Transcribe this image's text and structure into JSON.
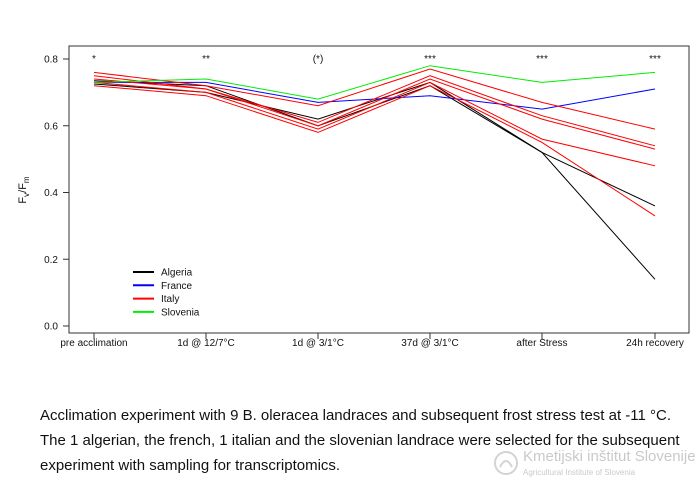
{
  "chart_data": {
    "type": "line",
    "ylabel_main": "F",
    "ylabel_sub1": "v",
    "ylabel_mid": "/F",
    "ylabel_sub2": "m",
    "categories": [
      "pre acclimation",
      "1d @ 12/7°C",
      "1d @ 3/1°C",
      "37d @ 3/1°C",
      "after Stress",
      "24h recovery"
    ],
    "significance": [
      "*",
      "**",
      "(*)",
      "***",
      "***",
      "***"
    ],
    "ylim": [
      0.0,
      0.8
    ],
    "yticks": [
      "0.0",
      "0.2",
      "0.4",
      "0.6",
      "0.8"
    ],
    "legend_placement": "bottom-left",
    "legend": [
      {
        "name": "Algeria",
        "color": "#000000"
      },
      {
        "name": "France",
        "color": "#0000ff"
      },
      {
        "name": "Italy",
        "color": "#ff0000"
      },
      {
        "name": "Slovenia",
        "color": "#00ee00"
      }
    ],
    "lines": [
      {
        "group": "Algeria",
        "color": "#000000",
        "values": [
          0.725,
          0.7,
          0.62,
          0.73,
          0.52,
          0.36
        ]
      },
      {
        "group": "Algeria",
        "color": "#000000",
        "values": [
          0.735,
          0.72,
          0.6,
          0.72,
          0.52,
          0.14
        ]
      },
      {
        "group": "France",
        "color": "#0000ff",
        "values": [
          0.73,
          0.73,
          0.67,
          0.69,
          0.65,
          0.71
        ]
      },
      {
        "group": "Italy",
        "color": "#ff0000",
        "values": [
          0.76,
          0.72,
          0.66,
          0.77,
          0.67,
          0.59
        ]
      },
      {
        "group": "Italy",
        "color": "#ff0000",
        "values": [
          0.75,
          0.71,
          0.61,
          0.75,
          0.63,
          0.54
        ]
      },
      {
        "group": "Italy",
        "color": "#ff0000",
        "values": [
          0.74,
          0.71,
          0.6,
          0.74,
          0.62,
          0.53
        ]
      },
      {
        "group": "Italy",
        "color": "#ff0000",
        "values": [
          0.73,
          0.7,
          0.59,
          0.73,
          0.56,
          0.48
        ]
      },
      {
        "group": "Italy",
        "color": "#ff0000",
        "values": [
          0.72,
          0.69,
          0.58,
          0.72,
          0.55,
          0.33
        ]
      },
      {
        "group": "Slovenia",
        "color": "#00ee00",
        "values": [
          0.73,
          0.74,
          0.68,
          0.78,
          0.73,
          0.76
        ]
      }
    ]
  },
  "caption": {
    "text": "Acclimation experiment with 9 B. oleracea landraces and subsequent frost stress test at -11 °C. The 1 algerian, the french, 1 italian and the slovenian landrace were selected for the subsequent experiment with sampling for transcriptomics."
  },
  "watermark": {
    "title": "Kmetijski inštitut Slovenije",
    "subtitle": "Agricultural Institute of Slovenia"
  }
}
